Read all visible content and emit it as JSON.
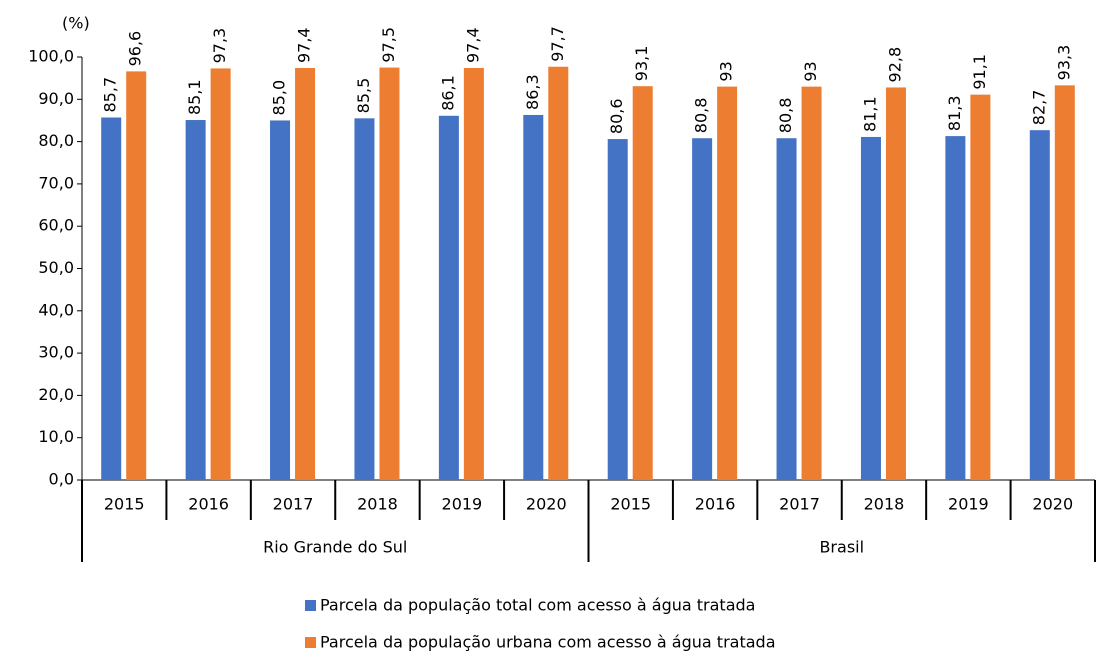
{
  "chart_data": {
    "type": "bar",
    "y_unit_label": "(%)",
    "categories": [
      "2015",
      "2016",
      "2017",
      "2018",
      "2019",
      "2020",
      "2015",
      "2016",
      "2017",
      "2018",
      "2019",
      "2020"
    ],
    "groups": [
      "Rio Grande do Sul",
      "Brasil"
    ],
    "series": [
      {
        "name": "Parcela da população total com acesso à água tratada",
        "color": "#4472c4",
        "values": [
          85.7,
          85.1,
          85.0,
          85.5,
          86.1,
          86.3,
          80.6,
          80.8,
          80.8,
          81.1,
          81.3,
          82.7
        ],
        "value_labels": [
          "85,7",
          "85,1",
          "85,0",
          "85,5",
          "86,1",
          "86,3",
          "80,6",
          "80,8",
          "80,8",
          "81,1",
          "81,3",
          "82,7"
        ]
      },
      {
        "name": "Parcela da população urbana com acesso à água tratada",
        "color": "#ed7d31",
        "values": [
          96.6,
          97.3,
          97.4,
          97.5,
          97.4,
          97.7,
          93.1,
          93,
          93,
          92.8,
          91.1,
          93.3
        ],
        "value_labels": [
          "96,6",
          "97,3",
          "97,4",
          "97,5",
          "97,4",
          "97,7",
          "93,1",
          "93",
          "93",
          "92,8",
          "91,1",
          "93,3"
        ]
      }
    ],
    "ylim": [
      0,
      100
    ],
    "yticks": [
      {
        "value": 0,
        "label": "0,0"
      },
      {
        "value": 10,
        "label": "10,0"
      },
      {
        "value": 20,
        "label": "20,0"
      },
      {
        "value": 30,
        "label": "30,0"
      },
      {
        "value": 40,
        "label": "40,0"
      },
      {
        "value": 50,
        "label": "50,0"
      },
      {
        "value": 60,
        "label": "60,0"
      },
      {
        "value": 70,
        "label": "70,0"
      },
      {
        "value": 80,
        "label": "80,0"
      },
      {
        "value": 90,
        "label": "90,0"
      },
      {
        "value": 100,
        "label": "100,0"
      }
    ],
    "legend": "bottom"
  }
}
